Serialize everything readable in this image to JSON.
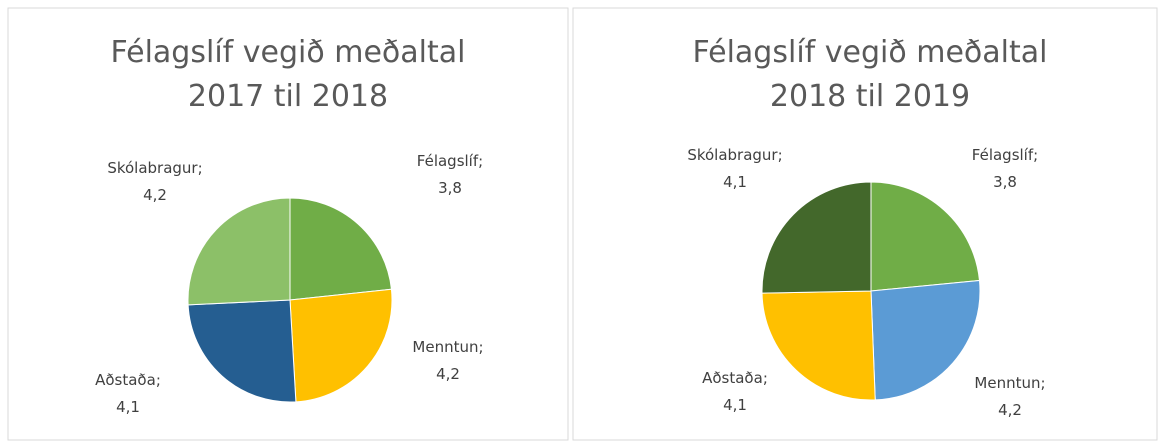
{
  "chart_data": [
    {
      "type": "pie",
      "title": [
        "Félagslíf vegið meðaltal",
        "2017 til 2018"
      ],
      "categories": [
        "Félagslíf",
        "Menntun",
        "Aðstaða",
        "Skólabragur"
      ],
      "values": [
        3.8,
        4.2,
        4.1,
        4.2
      ],
      "value_labels": [
        "3,8",
        "4,2",
        "4,1",
        "4,2"
      ],
      "label_separator": ";",
      "colors": [
        "#70ad47",
        "#ffc000",
        "#255e91",
        "#8cc068"
      ]
    },
    {
      "type": "pie",
      "title": [
        "Félagslíf vegið meðaltal",
        "2018 til 2019"
      ],
      "categories": [
        "Félagslíf",
        "Menntun",
        "Aðstaða",
        "Skólabragur"
      ],
      "values": [
        3.8,
        4.2,
        4.1,
        4.1
      ],
      "value_labels": [
        "3,8",
        "4,2",
        "4,1",
        "4,1"
      ],
      "label_separator": ";",
      "colors": [
        "#70ad47",
        "#5b9bd5",
        "#ffc000",
        "#43682b"
      ]
    }
  ]
}
